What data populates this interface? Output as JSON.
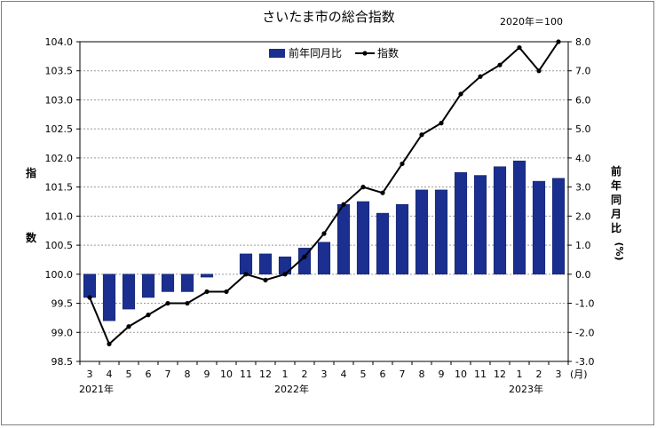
{
  "chart_data": {
    "type": "bar+line",
    "title": "さいたま市の総合指数",
    "base_note": "2020年＝100",
    "legend": {
      "bar": "前年同月比",
      "line": "指数",
      "placement": "top-center"
    },
    "ylabel_left": [
      "指",
      "数"
    ],
    "ylabel_right": [
      "前",
      "年",
      "同",
      "月",
      "比",
      "(%)"
    ],
    "x_unit": "(月)",
    "categories": [
      "3",
      "4",
      "5",
      "6",
      "7",
      "8",
      "9",
      "10",
      "11",
      "12",
      "1",
      "2",
      "3",
      "4",
      "5",
      "6",
      "7",
      "8",
      "9",
      "10",
      "11",
      "12",
      "1",
      "2",
      "3"
    ],
    "year_labels": [
      {
        "label": "2021年",
        "at_index": 0
      },
      {
        "label": "2022年",
        "at_index": 10
      },
      {
        "label": "2023年",
        "at_index": 22
      }
    ],
    "y_left": {
      "min": 98.5,
      "max": 104.0,
      "step": 0.5,
      "ticks": [
        "104.0",
        "103.5",
        "103.0",
        "102.5",
        "102.0",
        "101.5",
        "101.0",
        "100.5",
        "100.0",
        "99.5",
        "99.0",
        "98.5"
      ]
    },
    "y_right": {
      "min": -3.0,
      "max": 8.0,
      "step": 1.0,
      "ticks": [
        "8.0",
        "7.0",
        "6.0",
        "5.0",
        "4.0",
        "3.0",
        "2.0",
        "1.0",
        "0.0",
        "-1.0",
        "-2.0",
        "-3.0"
      ]
    },
    "series": [
      {
        "name": "前年同月比",
        "type": "bar",
        "axis": "right",
        "color": "#1a2f8f",
        "values": [
          -0.8,
          -1.6,
          -1.2,
          -0.8,
          -0.6,
          -0.6,
          -0.1,
          0.0,
          0.7,
          0.7,
          0.6,
          0.9,
          1.1,
          2.4,
          2.5,
          2.1,
          2.4,
          2.9,
          2.9,
          3.5,
          3.4,
          3.7,
          3.9,
          3.2,
          3.3
        ]
      },
      {
        "name": "指数",
        "type": "line",
        "axis": "left",
        "color": "#000000",
        "values": [
          99.6,
          98.8,
          99.1,
          99.3,
          99.5,
          99.5,
          99.7,
          99.7,
          100.0,
          99.9,
          100.0,
          100.3,
          100.7,
          101.2,
          101.5,
          101.4,
          101.9,
          102.4,
          102.6,
          103.1,
          103.4,
          103.6,
          103.9,
          103.5,
          104.0
        ]
      }
    ],
    "grid": "horizontal dashed"
  }
}
